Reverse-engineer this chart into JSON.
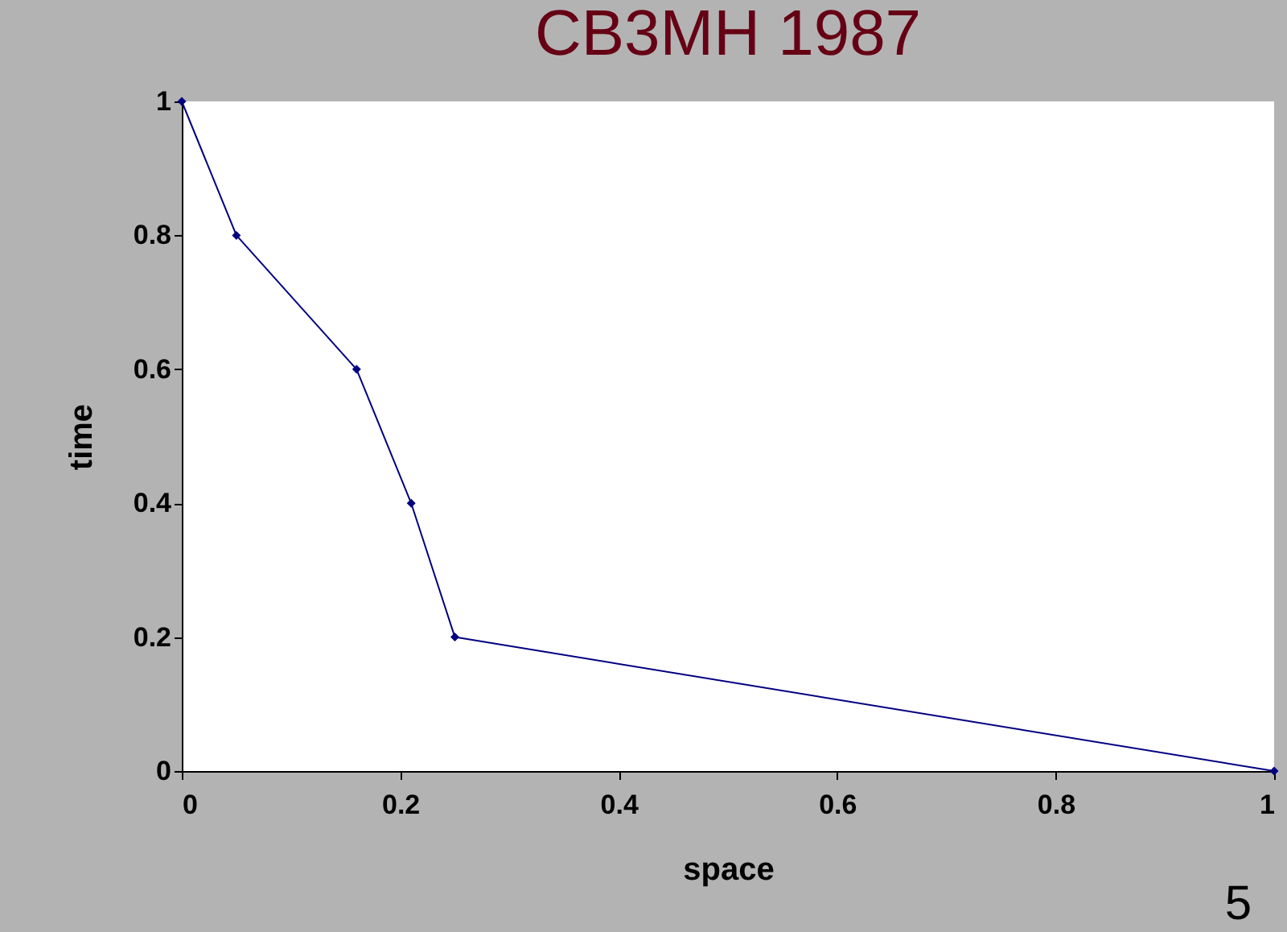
{
  "chart_data": {
    "type": "line",
    "title": "CB3MH 1987",
    "xlabel": "space",
    "ylabel": "time",
    "x": [
      0,
      0.05,
      0.16,
      0.21,
      0.25,
      1
    ],
    "series": [
      {
        "color": "#000080",
        "values": [
          1,
          0.8,
          0.6,
          0.4,
          0.2,
          0
        ]
      }
    ],
    "xlim": [
      0,
      1
    ],
    "xticks": [
      0,
      0.2,
      0.4,
      0.6,
      0.8,
      1
    ],
    "ylim": [
      0,
      1
    ],
    "yticks": [
      0,
      0.2,
      0.4,
      0.6,
      0.8,
      1
    ],
    "grid": false,
    "marker": "diamond",
    "line_style": "solid",
    "annotations": [
      "5"
    ]
  }
}
